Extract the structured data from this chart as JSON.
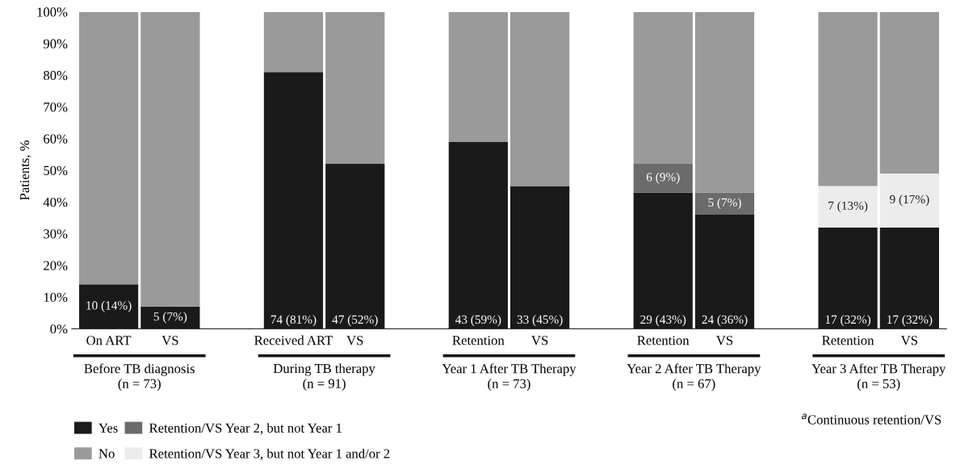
{
  "chart_data": {
    "type": "bar",
    "stacked": true,
    "ylabel": "Patients, %",
    "categories": [
      "On ART",
      "VS",
      null,
      "Received ART",
      "VS",
      null,
      "Retention",
      "VS",
      null,
      "Retention",
      "VS",
      null,
      "Retention",
      "VS"
    ],
    "series": [
      {
        "name": "Yes",
        "color": "#1a1a1a",
        "values": [
          14,
          7,
          null,
          81,
          52,
          null,
          59,
          45,
          null,
          43,
          36,
          null,
          32,
          32
        ],
        "value_labels": [
          "10 (14%)",
          "5 (7%)",
          null,
          "74 (81%)",
          "47 (52%)",
          null,
          "43 (59%)",
          "33 (45%)",
          null,
          "29 (43%)",
          "24 (36%)",
          null,
          "17 (32%)",
          "17 (32%)"
        ]
      },
      {
        "name": "Retention/VS Year 2, but not Year 1",
        "color": "#6b6b6b",
        "values": [
          0,
          0,
          null,
          0,
          0,
          null,
          0,
          0,
          null,
          9,
          7,
          null,
          0,
          0
        ],
        "value_labels": [
          null,
          null,
          null,
          null,
          null,
          null,
          null,
          null,
          null,
          "6 (9%)",
          "5 (7%)",
          null,
          null,
          null
        ]
      },
      {
        "name": "Retention/VS Year 3, but not Year 1 and/or 2",
        "color": "#ececec",
        "values": [
          0,
          0,
          null,
          0,
          0,
          null,
          0,
          0,
          null,
          0,
          0,
          null,
          13,
          17
        ],
        "value_labels": [
          null,
          null,
          null,
          null,
          null,
          null,
          null,
          null,
          null,
          null,
          null,
          null,
          "7 (13%)",
          "9 (17%)"
        ]
      },
      {
        "name": "No",
        "color": "#9a9a9a",
        "values": [
          86,
          93,
          null,
          19,
          48,
          null,
          41,
          55,
          null,
          48,
          57,
          null,
          55,
          51
        ]
      }
    ],
    "ylim": [
      0,
      100
    ],
    "yticks": [
      {
        "value": 0,
        "label": "0%"
      },
      {
        "value": 10,
        "label": "10%"
      },
      {
        "value": 20,
        "label": "20%"
      },
      {
        "value": 30,
        "label": "30%"
      },
      {
        "value": 40,
        "label": "40%"
      },
      {
        "value": 50,
        "label": "50%"
      },
      {
        "value": 60,
        "label": "60%"
      },
      {
        "value": 70,
        "label": "70%"
      },
      {
        "value": 80,
        "label": "80%"
      },
      {
        "value": 90,
        "label": "90%"
      },
      {
        "value": 100,
        "label": "100%"
      }
    ],
    "grid": false,
    "legend": "bottom left",
    "annotations": [
      "Before TB diagnosis\n(n = 73)",
      "During TB therapy\n(n = 91)",
      "Year 1 After TB Therapy\n(n = 73)",
      "Year 2 After TB Therapy\n(n = 67)",
      "Year 3 After TB Therapy\n(n = 53)",
      "$^{a}$Continuous retention/VS"
    ]
  }
}
